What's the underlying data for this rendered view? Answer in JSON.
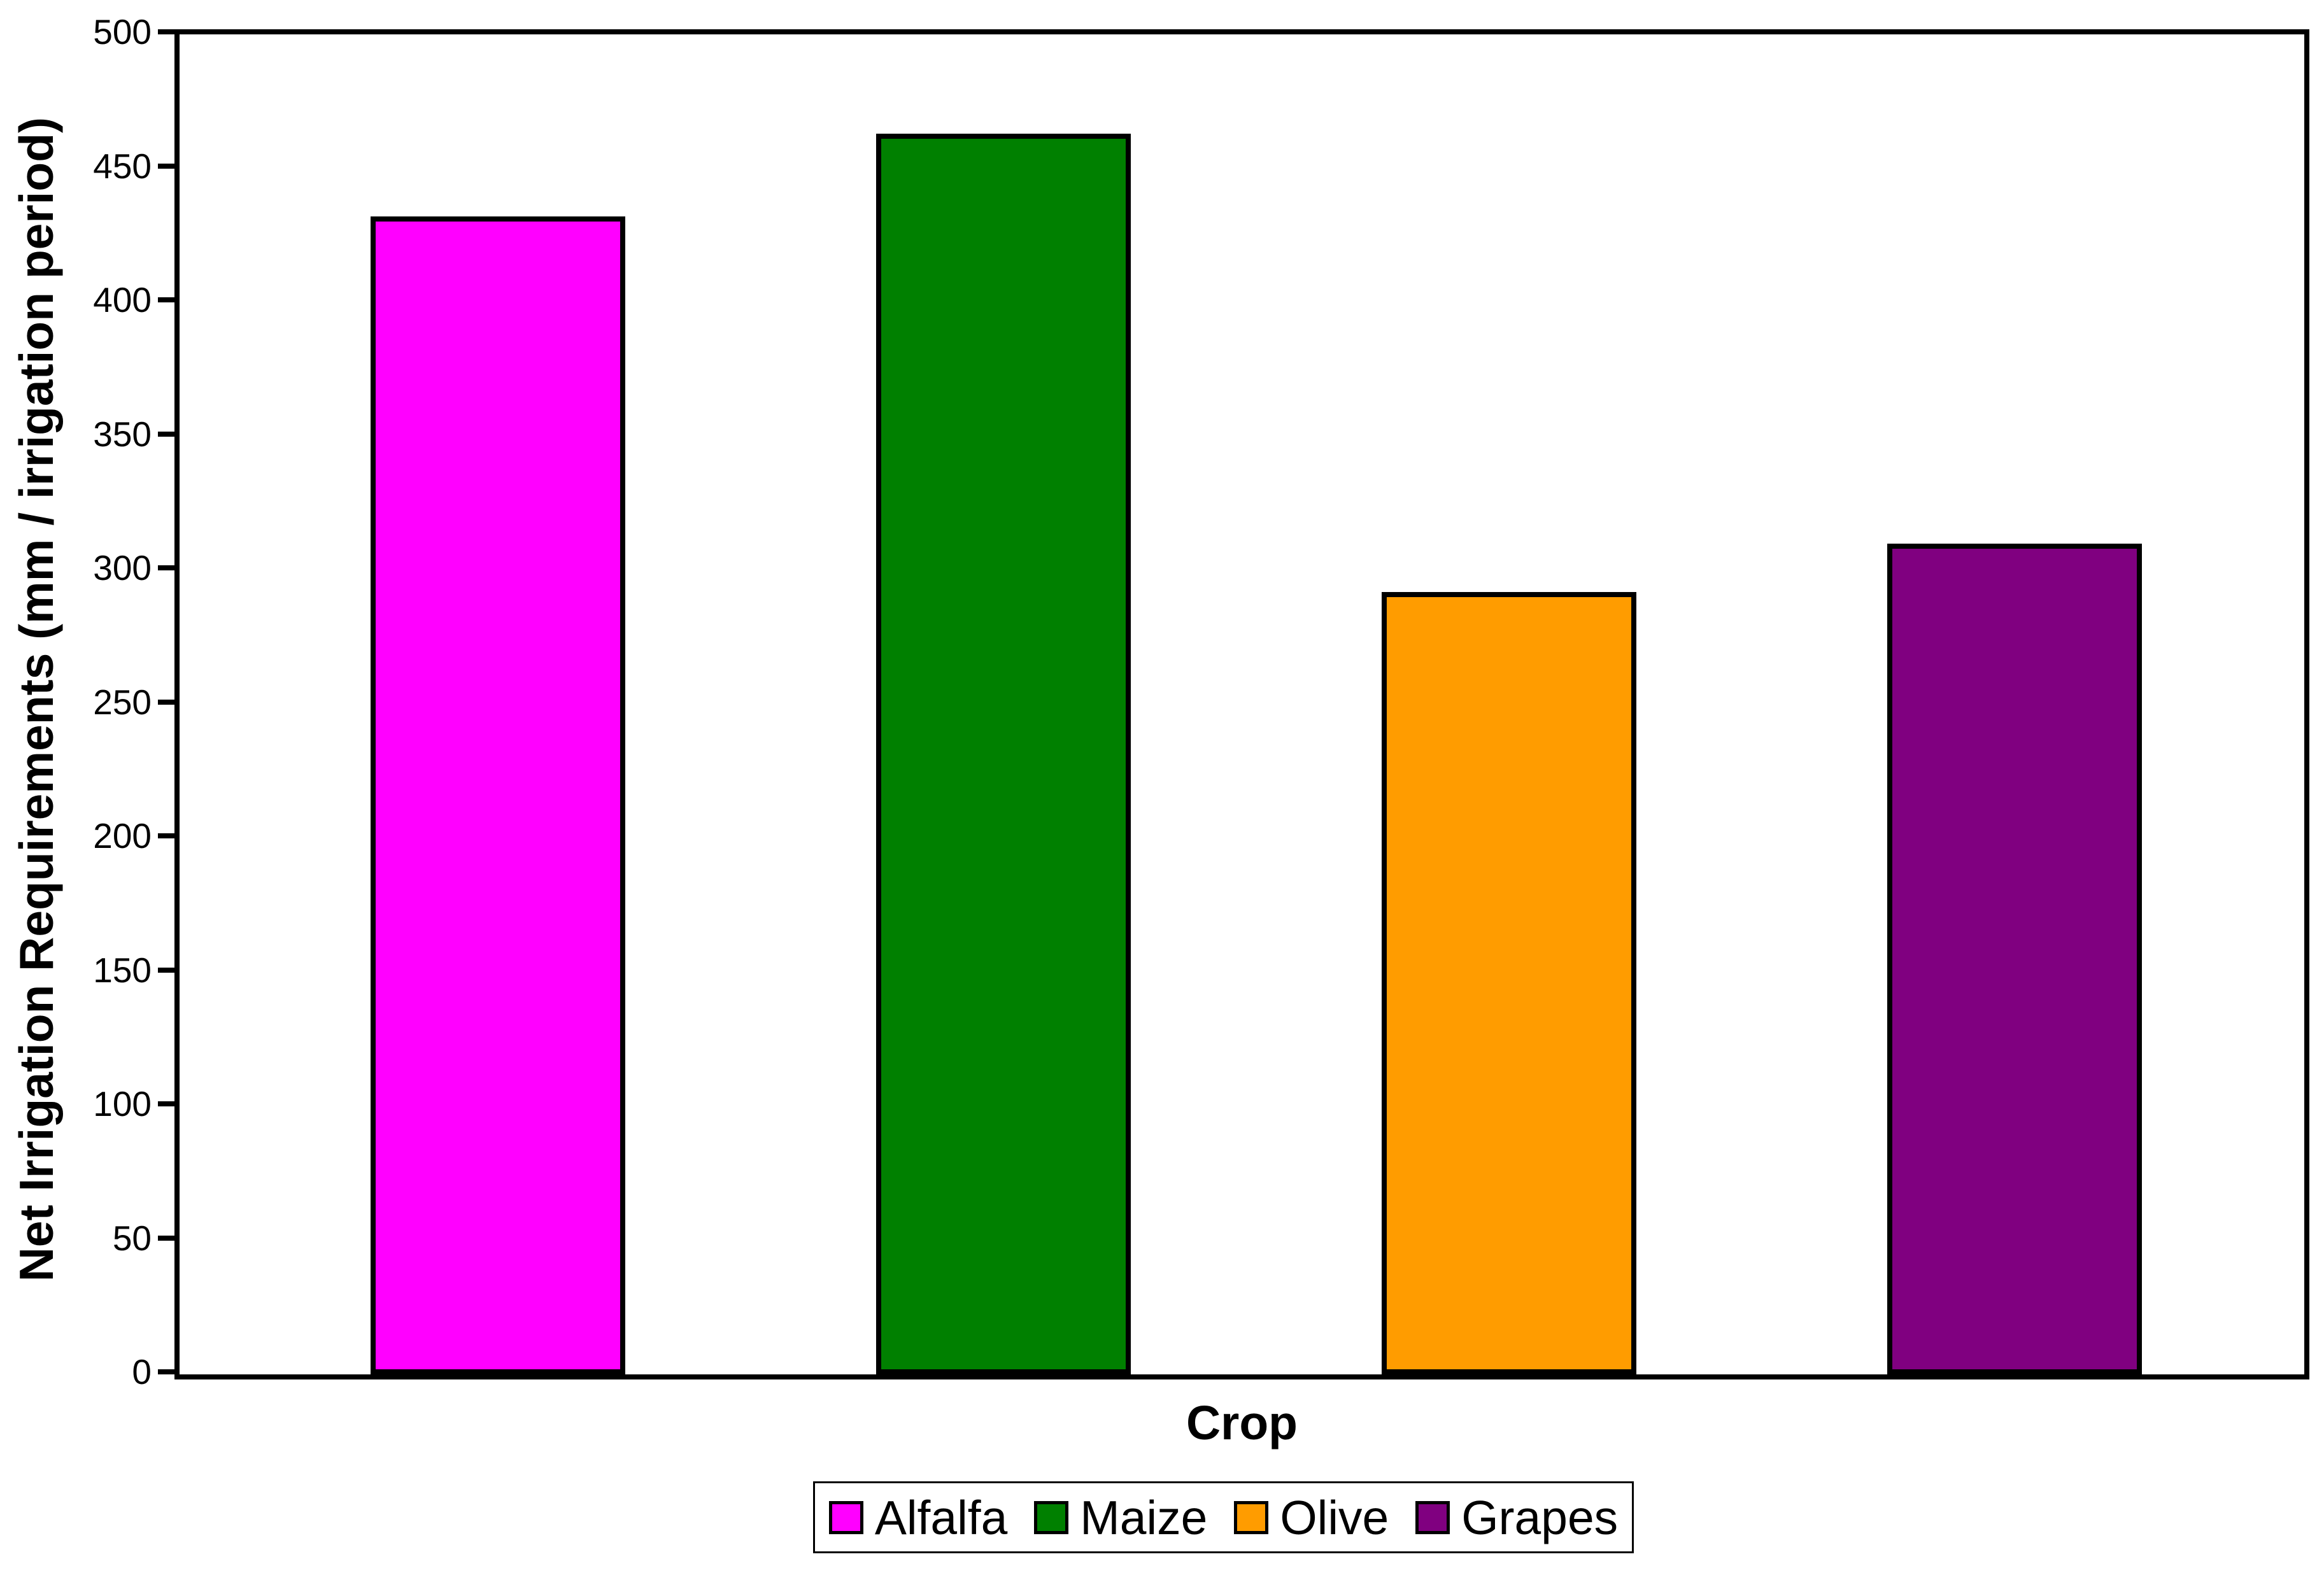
{
  "figure": {
    "background": "#FFFFFF",
    "plot_border_color": "#000000"
  },
  "chart_data": {
    "type": "bar",
    "title": "",
    "xlabel": "Crop",
    "ylabel": "Net Irrigation Requirements (mm / irrigation period)",
    "categories": [
      "Alfalfa",
      "Maize",
      "Olive",
      "Grapes"
    ],
    "values": [
      432,
      463,
      292,
      310
    ],
    "bar_colors": [
      "#FF00FF",
      "#008000",
      "#FF9C00",
      "#800080"
    ],
    "bar_border_color": "#000000",
    "ylim": [
      0,
      500
    ],
    "ytick_step": 50,
    "ytick_labels": [
      "0",
      "50",
      "100",
      "150",
      "200",
      "250",
      "300",
      "350",
      "400",
      "450",
      "500"
    ],
    "grid": "off",
    "legend": {
      "position": "bottom",
      "entries": [
        {
          "label": "Alfalfa",
          "color": "#FF00FF"
        },
        {
          "label": "Maize",
          "color": "#008000"
        },
        {
          "label": "Olive",
          "color": "#FF9C00"
        },
        {
          "label": "Grapes",
          "color": "#800080"
        }
      ]
    }
  }
}
